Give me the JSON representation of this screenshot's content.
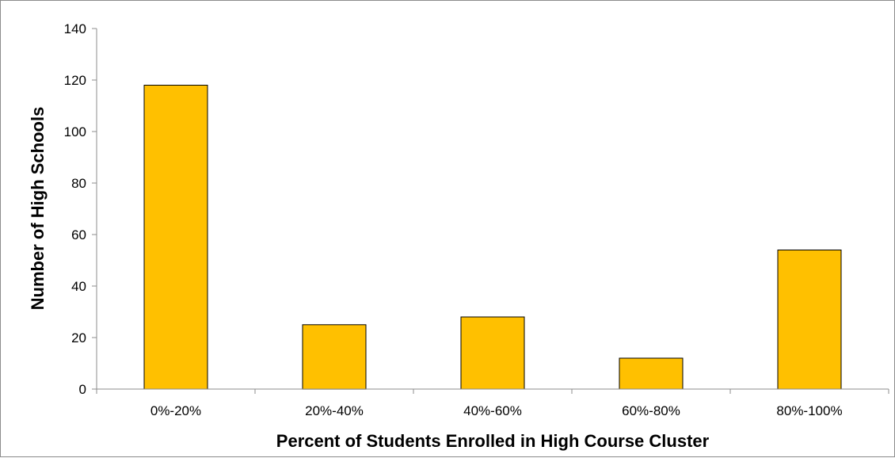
{
  "chart_data": {
    "type": "bar",
    "title": "",
    "xlabel": "Percent of Students Enrolled in High Course Cluster",
    "ylabel": "Number of High Schools",
    "categories": [
      "0%-20%",
      "20%-40%",
      "40%-60%",
      "60%-80%",
      "80%-100%"
    ],
    "values": [
      118,
      25,
      28,
      12,
      54
    ],
    "ylim": [
      0,
      140
    ],
    "yticks": [
      "0",
      "20",
      "40",
      "60",
      "80",
      "100",
      "120",
      "140"
    ],
    "grid": false,
    "legend": "none",
    "bar_color": "#FFC000",
    "bar_outline_color": "#000000"
  }
}
